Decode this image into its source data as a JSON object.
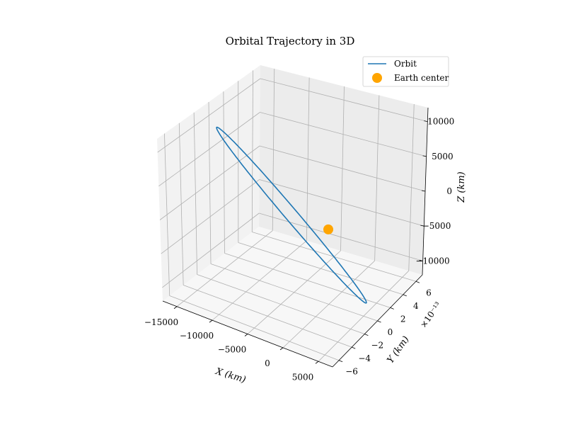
{
  "chart_data": {
    "type": "line",
    "title": "Orbital Trajectory in 3D",
    "xlabel": "X (km)",
    "ylabel": "Y (km)",
    "zlabel": "Z (km)",
    "y_offset_label": "×10⁻¹³",
    "x_ticks": [
      -15000,
      -10000,
      -5000,
      0,
      5000
    ],
    "x_tick_labels": [
      "−15000",
      "−10000",
      "−5000",
      "0",
      "5000"
    ],
    "y_ticks": [
      -6,
      -4,
      -2,
      0,
      2,
      4,
      6
    ],
    "y_tick_labels": [
      "−6",
      "−4",
      "−2",
      "0",
      "2",
      "4",
      "6"
    ],
    "z_ticks": [
      -10000,
      -5000,
      0,
      5000,
      10000
    ],
    "z_tick_labels": [
      "−10000",
      "−5000",
      "0",
      "5000",
      "10000"
    ],
    "xlim": [
      -17000,
      7000
    ],
    "ylim": [
      -7,
      7
    ],
    "zlim": [
      -12000,
      12000
    ],
    "grid": true,
    "legend_position": "top-right",
    "legend": [
      "Orbit",
      "Earth center"
    ],
    "series": [
      {
        "name": "Orbit",
        "color": "#1f77b4",
        "kind": "ellipse",
        "x_range": [
          -15500,
          5100
        ],
        "z_range": [
          -9200,
          9200
        ],
        "y": 0
      },
      {
        "name": "Earth center",
        "color": "#ffa500",
        "kind": "point",
        "x": 0,
        "y": 0,
        "z": 0
      }
    ]
  }
}
